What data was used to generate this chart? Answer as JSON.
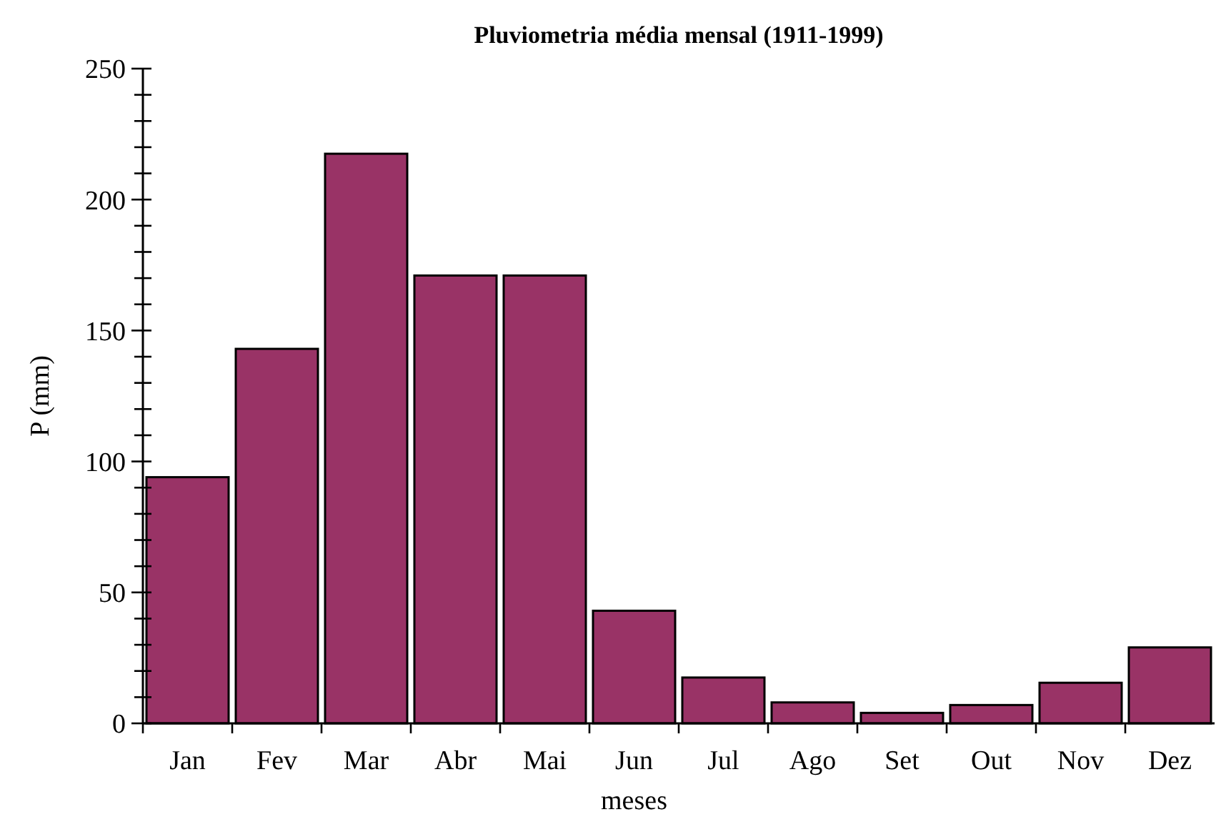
{
  "chart_data": {
    "type": "bar",
    "title": "Pluviometria média mensal (1911-1999)",
    "xlabel": "meses",
    "ylabel": "P (mm)",
    "categories": [
      "Jan",
      "Fev",
      "Mar",
      "Abr",
      "Mai",
      "Jun",
      "Jul",
      "Ago",
      "Set",
      "Out",
      "Nov",
      "Dez"
    ],
    "values": [
      94,
      143,
      217.5,
      171,
      171,
      43,
      17.5,
      8,
      4,
      7,
      15.5,
      29
    ],
    "color": "#993366",
    "ylim": [
      0,
      250
    ],
    "yticks": [
      0,
      {
        "value": 10,
        "label": null
      },
      {
        "value": 20,
        "label": null
      },
      {
        "value": 30,
        "label": null
      },
      {
        "value": 40,
        "label": null
      },
      50,
      {
        "value": 60,
        "label": null
      },
      {
        "value": 70,
        "label": null
      },
      {
        "value": 80,
        "label": null
      },
      {
        "value": 90,
        "label": null
      },
      100,
      {
        "value": 110,
        "label": null
      },
      {
        "value": 120,
        "label": null
      },
      {
        "value": 130,
        "label": null
      },
      {
        "value": 140,
        "label": null
      },
      150,
      {
        "value": 160,
        "label": null
      },
      {
        "value": 170,
        "label": null
      },
      {
        "value": 180,
        "label": null
      },
      {
        "value": 190,
        "label": null
      },
      200,
      {
        "value": 210,
        "label": null
      },
      {
        "value": 220,
        "label": null
      },
      {
        "value": 230,
        "label": null
      },
      {
        "value": 240,
        "label": null
      },
      250
    ],
    "grid": false
  }
}
